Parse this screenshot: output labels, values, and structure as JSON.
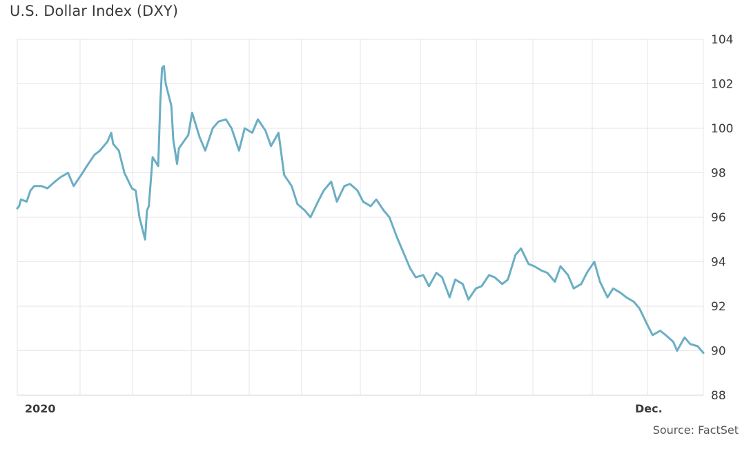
{
  "title": "U.S. Dollar Index (DXY)",
  "source": "Source: FactSet",
  "chart_data": {
    "type": "line",
    "title": "U.S. Dollar Index (DXY)",
    "xlabel": "",
    "ylabel": "",
    "ylim": [
      88,
      104
    ],
    "yticks": [
      88,
      90,
      92,
      94,
      96,
      98,
      100,
      102,
      104
    ],
    "y_axis_position": "right",
    "x_tick_labels": [
      "2020",
      "Dec."
    ],
    "grid": true,
    "line_color": "#6aaec4",
    "grid_color": "#e6e6e6",
    "x_range": [
      "2020-01-01",
      "2020-12-31"
    ],
    "series": [
      {
        "x": [
          "2020-01-01",
          "2020-01-02",
          "2020-01-03",
          "2020-01-06",
          "2020-01-08",
          "2020-01-10",
          "2020-01-14",
          "2020-01-17",
          "2020-01-21",
          "2020-01-24",
          "2020-01-28",
          "2020-01-31",
          "2020-02-04",
          "2020-02-07",
          "2020-02-11",
          "2020-02-14",
          "2020-02-18",
          "2020-02-20",
          "2020-02-21",
          "2020-02-24",
          "2020-02-27",
          "2020-03-02",
          "2020-03-04",
          "2020-03-06",
          "2020-03-09",
          "2020-03-10",
          "2020-03-11",
          "2020-03-13",
          "2020-03-16",
          "2020-03-17",
          "2020-03-18",
          "2020-03-19",
          "2020-03-20",
          "2020-03-23",
          "2020-03-24",
          "2020-03-26",
          "2020-03-27",
          "2020-04-01",
          "2020-04-03",
          "2020-04-07",
          "2020-04-10",
          "2020-04-14",
          "2020-04-17",
          "2020-04-21",
          "2020-04-24",
          "2020-04-28",
          "2020-05-01",
          "2020-05-05",
          "2020-05-08",
          "2020-05-12",
          "2020-05-15",
          "2020-05-19",
          "2020-05-22",
          "2020-05-26",
          "2020-05-29",
          "2020-06-02",
          "2020-06-05",
          "2020-06-09",
          "2020-06-12",
          "2020-06-16",
          "2020-06-19",
          "2020-06-23",
          "2020-06-26",
          "2020-06-30",
          "2020-07-03",
          "2020-07-07",
          "2020-07-10",
          "2020-07-14",
          "2020-07-17",
          "2020-07-21",
          "2020-07-24",
          "2020-07-28",
          "2020-07-31",
          "2020-08-04",
          "2020-08-07",
          "2020-08-11",
          "2020-08-14",
          "2020-08-18",
          "2020-08-21",
          "2020-08-25",
          "2020-08-28",
          "2020-09-01",
          "2020-09-04",
          "2020-09-08",
          "2020-09-11",
          "2020-09-15",
          "2020-09-18",
          "2020-09-22",
          "2020-09-25",
          "2020-09-29",
          "2020-10-02",
          "2020-10-06",
          "2020-10-09",
          "2020-10-13",
          "2020-10-16",
          "2020-10-20",
          "2020-10-23",
          "2020-10-27",
          "2020-10-30",
          "2020-11-03",
          "2020-11-06",
          "2020-11-10",
          "2020-11-13",
          "2020-11-17",
          "2020-11-20",
          "2020-11-24",
          "2020-11-27",
          "2020-12-01",
          "2020-12-04",
          "2020-12-08",
          "2020-12-11",
          "2020-12-15",
          "2020-12-17",
          "2020-12-21",
          "2020-12-24",
          "2020-12-28",
          "2020-12-31"
        ],
        "values": [
          96.4,
          96.5,
          96.8,
          96.7,
          97.2,
          97.4,
          97.4,
          97.3,
          97.6,
          97.8,
          98.0,
          97.4,
          97.9,
          98.3,
          98.8,
          99.0,
          99.4,
          99.8,
          99.3,
          99.0,
          98.0,
          97.3,
          97.2,
          96.0,
          95.0,
          96.3,
          96.5,
          98.7,
          98.3,
          101.0,
          102.7,
          102.8,
          102.0,
          101.0,
          99.5,
          98.4,
          99.1,
          99.7,
          100.7,
          99.6,
          99.0,
          100.0,
          100.3,
          100.4,
          100.0,
          99.0,
          100.0,
          99.8,
          100.4,
          99.9,
          99.2,
          99.8,
          97.9,
          97.4,
          96.6,
          96.3,
          96.0,
          96.7,
          97.2,
          97.6,
          96.7,
          97.4,
          97.5,
          97.2,
          96.7,
          96.5,
          96.8,
          96.3,
          96.0,
          95.1,
          94.5,
          93.7,
          93.3,
          93.4,
          92.9,
          93.5,
          93.3,
          92.4,
          93.2,
          93.0,
          92.3,
          92.8,
          92.9,
          93.4,
          93.3,
          93.0,
          93.2,
          94.3,
          94.6,
          93.9,
          93.8,
          93.6,
          93.5,
          93.1,
          93.8,
          93.4,
          92.8,
          93.0,
          93.5,
          94.0,
          93.1,
          92.4,
          92.8,
          92.6,
          92.4,
          92.2,
          91.9,
          91.2,
          90.7,
          90.9,
          90.7,
          90.4,
          90.0,
          90.6,
          90.3,
          90.2,
          89.9
        ]
      }
    ]
  }
}
